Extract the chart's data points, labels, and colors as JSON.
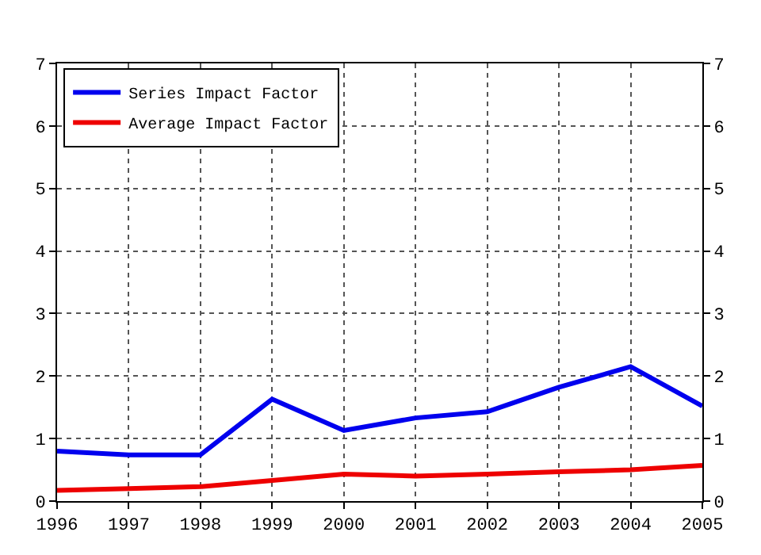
{
  "chart_data": {
    "type": "line",
    "x": [
      1996,
      1997,
      1998,
      1999,
      2000,
      2001,
      2002,
      2003,
      2004,
      2005
    ],
    "series": [
      {
        "name": "Series Impact Factor",
        "color": "#0000ee",
        "values": [
          0.8,
          0.74,
          0.74,
          1.63,
          1.13,
          1.33,
          1.43,
          1.82,
          2.15,
          1.52
        ]
      },
      {
        "name": "Average Impact Factor",
        "color": "#ee0000",
        "values": [
          0.17,
          0.2,
          0.23,
          0.33,
          0.43,
          0.4,
          0.43,
          0.47,
          0.5,
          0.57
        ]
      }
    ],
    "xlim": [
      1996,
      2005
    ],
    "xticks": [
      1996,
      1997,
      1998,
      1999,
      2000,
      2001,
      2002,
      2003,
      2004,
      2005
    ],
    "ylim": [
      0,
      7
    ],
    "yticks": [
      0,
      1,
      2,
      3,
      4,
      5,
      6,
      7
    ],
    "y2lim": [
      0,
      7
    ],
    "y2ticks": [
      0,
      1,
      2,
      3,
      4,
      5,
      6,
      7
    ],
    "grid": true,
    "legend": "top left",
    "marker": "none",
    "line_style": "solid"
  }
}
